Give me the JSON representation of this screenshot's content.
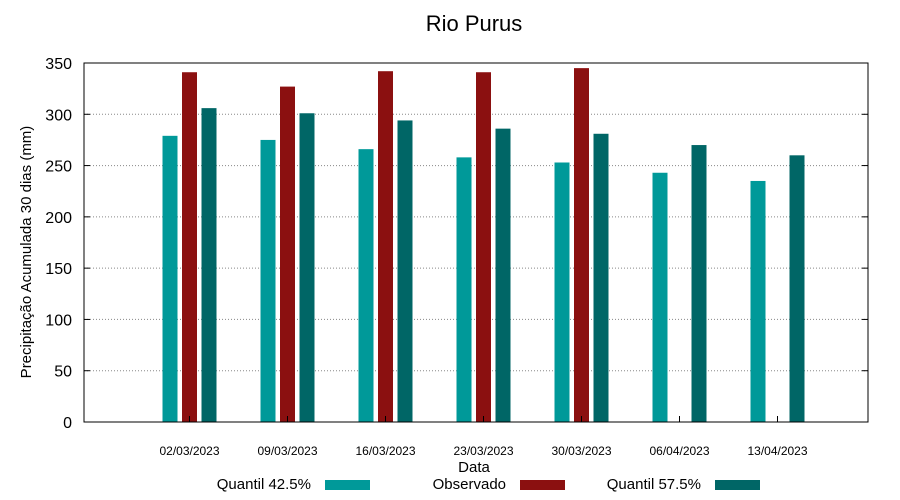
{
  "chart_data": {
    "type": "bar",
    "title": "Rio Purus",
    "xlabel": "Data",
    "ylabel": "Precipitação Acumulada 30 dias (mm)",
    "ylim": [
      0,
      350
    ],
    "yticks": [
      "0",
      "50",
      "100",
      "150",
      "200",
      "250",
      "300",
      "350"
    ],
    "grid": true,
    "legend_position": "bottom",
    "categories": [
      "02/03/2023",
      "09/03/2023",
      "16/03/2023",
      "23/03/2023",
      "30/03/2023",
      "06/04/2023",
      "13/04/2023"
    ],
    "series": [
      {
        "name": "Quantil 42.5%",
        "color": "#009999",
        "values": [
          279,
          275,
          266,
          258,
          253,
          243,
          235
        ]
      },
      {
        "name": "Observado",
        "color": "#8B1010",
        "values": [
          341,
          327,
          342,
          341,
          345,
          null,
          null
        ]
      },
      {
        "name": "Quantil 57.5%",
        "color": "#006666",
        "values": [
          306,
          301,
          294,
          286,
          281,
          270,
          260
        ]
      }
    ]
  }
}
